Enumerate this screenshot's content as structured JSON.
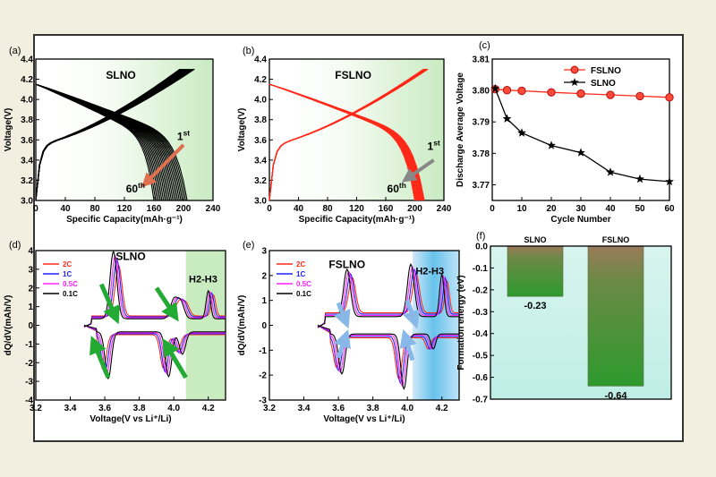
{
  "figure": {
    "background": "#f3efe0",
    "border_color": "#333333"
  },
  "chart_data": [
    {
      "id": "a",
      "panel_label": "(a)",
      "type": "line",
      "material": "SLNO",
      "title": "SLNO",
      "xlabel": "Specific Capacity(mAh·g⁻¹)",
      "ylabel": "Voltage(V)",
      "xlim": [
        0,
        240
      ],
      "ylim": [
        3.0,
        4.4
      ],
      "xticks": [
        "0",
        "40",
        "80",
        "120",
        "160",
        "200",
        "240"
      ],
      "yticks": [
        "3.0",
        "3.2",
        "3.4",
        "3.6",
        "3.8",
        "4.0",
        "4.2",
        "4.4"
      ],
      "series_color": "#000000",
      "num_cycles": 60,
      "first_cycle": {
        "charge_capacity": 215,
        "discharge_capacity": 205
      },
      "last_cycle": {
        "charge_capacity": 195,
        "discharge_capacity": 160
      },
      "annotations": [
        {
          "text": "1",
          "sup": "st"
        },
        {
          "text": "60",
          "sup": "th"
        }
      ],
      "arrow_color": "#e07050",
      "shading": "green"
    },
    {
      "id": "b",
      "panel_label": "(b)",
      "type": "line",
      "material": "FSLNO",
      "title": "FSLNO",
      "xlabel": "Specific Capacity(mAh·g⁻¹)",
      "ylabel": "Voltage(V)",
      "xlim": [
        0,
        240
      ],
      "ylim": [
        3.0,
        4.4
      ],
      "xticks": [
        "0",
        "40",
        "80",
        "120",
        "160",
        "200",
        "240"
      ],
      "yticks": [
        "3.0",
        "3.2",
        "3.4",
        "3.6",
        "3.8",
        "4.0",
        "4.2",
        "4.4"
      ],
      "series_color": "#ff2a1a",
      "num_cycles": 60,
      "first_cycle": {
        "charge_capacity": 218,
        "discharge_capacity": 213
      },
      "last_cycle": {
        "charge_capacity": 212,
        "discharge_capacity": 200
      },
      "annotations": [
        {
          "text": "1",
          "sup": "st"
        },
        {
          "text": "60",
          "sup": "th"
        }
      ],
      "arrow_color": "#888888",
      "shading": "green"
    },
    {
      "id": "c",
      "panel_label": "(c)",
      "type": "line",
      "xlabel": "Cycle Number",
      "ylabel": "Discharge Average Voltage",
      "xlim": [
        0,
        60
      ],
      "ylim": [
        3.765,
        3.81
      ],
      "xticks": [
        "0",
        "10",
        "20",
        "30",
        "40",
        "50",
        "60"
      ],
      "yticks": [
        "3.77",
        "3.78",
        "3.79",
        "3.80",
        "3.81"
      ],
      "series": [
        {
          "name": "FSLNO",
          "color": "#ff2a1a",
          "marker": "circle",
          "x": [
            1,
            5,
            10,
            20,
            30,
            40,
            50,
            60
          ],
          "y": [
            3.8004,
            3.8001,
            3.7999,
            3.7994,
            3.799,
            3.7986,
            3.7982,
            3.7978
          ]
        },
        {
          "name": "SLNO",
          "color": "#000000",
          "marker": "star",
          "x": [
            1,
            5,
            10,
            20,
            30,
            40,
            50,
            60
          ],
          "y": [
            3.8006,
            3.791,
            3.7865,
            3.7825,
            3.7802,
            3.774,
            3.7718,
            3.771
          ]
        }
      ],
      "legend_position": "top-right"
    },
    {
      "id": "d",
      "panel_label": "(d)",
      "type": "line",
      "material": "SLNO",
      "title": "SLNO",
      "xlabel": "Voltage(V vs Li⁺/Li)",
      "ylabel": "dQ/dV(mAh/V)",
      "xlim": [
        3.2,
        4.3
      ],
      "ylim": [
        -4,
        4
      ],
      "xticks": [
        "3.2",
        "3.4",
        "3.6",
        "3.8",
        "4.0",
        "4.2"
      ],
      "yticks": [
        "-4",
        "-3",
        "-2",
        "-1",
        "0",
        "1",
        "2",
        "3",
        "4"
      ],
      "legend": [
        {
          "name": "2C",
          "color": "#ff2a1a"
        },
        {
          "name": "1C",
          "color": "#2020ff"
        },
        {
          "name": "0.5C",
          "color": "#ff20ff"
        },
        {
          "name": "0.1C",
          "color": "#000000"
        }
      ],
      "peaks": {
        "charge": [
          {
            "v": 3.65,
            "h": 3.6
          },
          {
            "v": 4.0,
            "h": 1.0
          },
          {
            "v": 4.04,
            "h": 0.9
          },
          {
            "v": 4.2,
            "h": 1.5
          }
        ],
        "discharge": [
          {
            "v": 3.62,
            "h": -2.5
          },
          {
            "v": 3.97,
            "h": -2.4
          },
          {
            "v": 4.05,
            "h": -1.2
          }
        ]
      },
      "region_label": "H2-H3",
      "region_start": 4.07,
      "arrow_color": "#22aa33",
      "shading": "green"
    },
    {
      "id": "e",
      "panel_label": "(e)",
      "type": "line",
      "material": "FSLNO",
      "title": "FSLNO",
      "xlabel": "Voltage(V vs Li⁺/Li)",
      "ylabel": "dQ/dV(mAh/V)",
      "xlim": [
        3.2,
        4.3
      ],
      "ylim": [
        -3,
        3
      ],
      "xticks": [
        "3.2",
        "3.4",
        "3.6",
        "3.8",
        "4.0",
        "4.2"
      ],
      "yticks": [
        "-3",
        "-2",
        "-1",
        "0",
        "1",
        "2",
        "3"
      ],
      "legend": [
        {
          "name": "2C",
          "color": "#ff2a1a"
        },
        {
          "name": "1C",
          "color": "#2020ff"
        },
        {
          "name": "0.5C",
          "color": "#ff20ff"
        },
        {
          "name": "0.1C",
          "color": "#000000"
        }
      ],
      "peaks": {
        "charge": [
          {
            "v": 3.65,
            "h": 1.9
          },
          {
            "v": 4.02,
            "h": 2.1
          },
          {
            "v": 4.2,
            "h": 1.7
          }
        ],
        "discharge": [
          {
            "v": 3.62,
            "h": -1.6
          },
          {
            "v": 3.98,
            "h": -2.2
          },
          {
            "v": 4.15,
            "h": -0.6
          }
        ]
      },
      "region_label": "H2-H3",
      "region_start": 4.03,
      "arrow_color": "#88b8e8",
      "shading": "blue"
    },
    {
      "id": "f",
      "panel_label": "(f)",
      "type": "bar",
      "categories": [
        "SLNO",
        "FSLNO"
      ],
      "values": [
        -0.23,
        -0.64
      ],
      "value_labels": [
        "-0.23",
        "-0.64"
      ],
      "ylabel": "Formation energy (eV)",
      "ylim": [
        -0.7,
        0.0
      ],
      "yticks": [
        "0.0",
        "-0.1",
        "-0.2",
        "-0.3",
        "-0.4",
        "-0.5",
        "-0.6",
        "-0.7"
      ],
      "bar_gradient": [
        "#9a7a5a",
        "#2e9a2e"
      ],
      "shading": "cyan"
    }
  ]
}
